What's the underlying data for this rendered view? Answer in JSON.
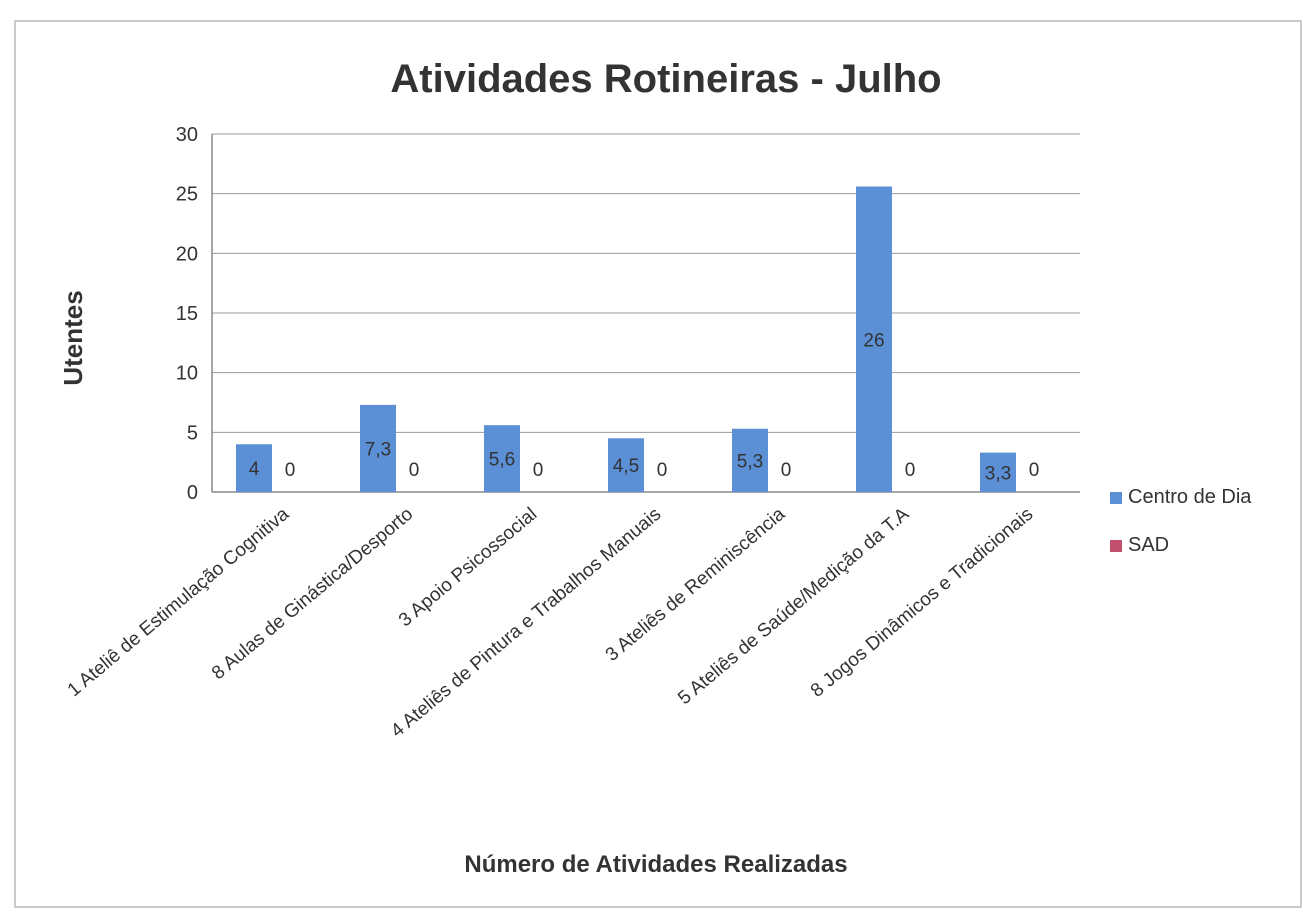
{
  "chart_data": {
    "type": "bar",
    "title": "Atividades Rotineiras - Julho",
    "xlabel": "Número de Atividades Realizadas",
    "ylabel": "Utentes",
    "ylim": [
      0,
      30
    ],
    "yticks": [
      0,
      5,
      10,
      15,
      20,
      25,
      30
    ],
    "grid": true,
    "legend_position": "right",
    "categories": [
      "1 Ateliê de Estimulação Cognitiva",
      "8 Aulas de Ginástica/Desporto",
      "3 Apoio Psicossocial",
      "4 Ateliês de Pintura e Trabalhos Manuais",
      "3 Ateliês de Reminiscência",
      "5 Ateliês de Saúde/Medição da T.A",
      "8 Jogos Dinâmicos e Tradicionais"
    ],
    "series": [
      {
        "name": "Centro de Dia",
        "color": "#5b8fd6",
        "values": [
          4,
          7.3,
          5.6,
          4.5,
          5.3,
          25.6,
          3.3
        ],
        "labels": [
          "4",
          "7,3",
          "5,6",
          "4,5",
          "5,3",
          "26",
          "3,3"
        ]
      },
      {
        "name": "SAD",
        "color": "#c0506e",
        "values": [
          0,
          0,
          0,
          0,
          0,
          0,
          0
        ],
        "labels": [
          "0",
          "0",
          "0",
          "0",
          "0",
          "0",
          "0"
        ]
      }
    ]
  }
}
